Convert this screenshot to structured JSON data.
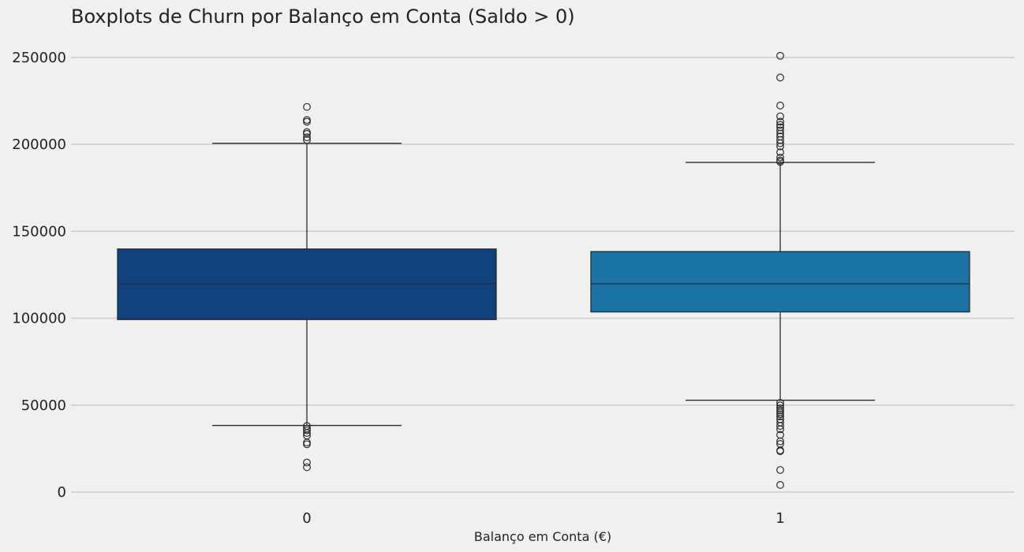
{
  "chart_data": {
    "type": "box",
    "title": "Boxplots de Churn por Balanço em Conta (Saldo > 0)",
    "xlabel": "Balanço em Conta (€)",
    "ylabel": "",
    "ylim": [
      -4000,
      262000
    ],
    "yticks": [
      0,
      50000,
      100000,
      150000,
      200000,
      250000
    ],
    "grid": true,
    "categories": [
      "0",
      "1"
    ],
    "boxes": [
      {
        "category": "0",
        "color": "#11417f",
        "whisker_low": 38300,
        "q1": 99200,
        "median": 119800,
        "q3": 139800,
        "whisker_high": 200600,
        "outliers": [
          221500,
          214000,
          213000,
          207000,
          206000,
          204000,
          202500,
          38000,
          36500,
          35500,
          34000,
          32500,
          28500,
          27500,
          17000,
          14300
        ]
      },
      {
        "category": "1",
        "color": "#1a72a5",
        "whisker_low": 52800,
        "q1": 103600,
        "median": 119800,
        "q3": 138300,
        "whisker_high": 189600,
        "outliers": [
          250900,
          238400,
          222300,
          216100,
          213000,
          211200,
          209800,
          208000,
          206100,
          204500,
          202500,
          200600,
          198800,
          195400,
          192400,
          190700,
          189900,
          51300,
          49800,
          48200,
          46900,
          45800,
          44700,
          43500,
          41900,
          40100,
          38000,
          36100,
          32900,
          29200,
          27700,
          24000,
          23500,
          12700,
          4100
        ]
      }
    ]
  }
}
